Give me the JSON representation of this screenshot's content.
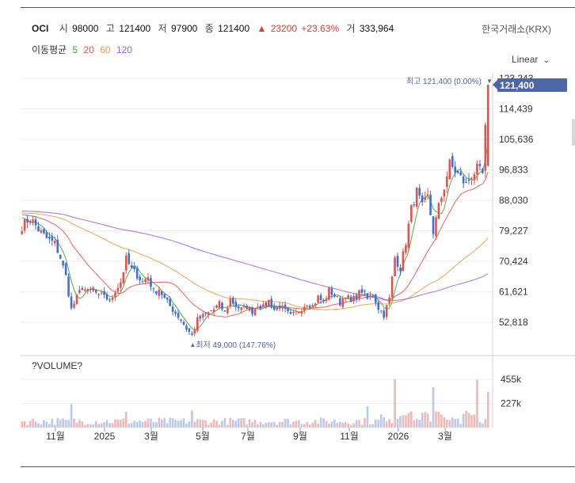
{
  "header": {
    "name": "OCI",
    "open_label": "시",
    "open": "98000",
    "high_label": "고",
    "high": "121400",
    "low_label": "저",
    "low": "97900",
    "close_label": "종",
    "close": "121400",
    "change": "23200",
    "change_pct": "+23.63%",
    "volume_label": "거",
    "volume": "333,964",
    "exchange": "한국거래소(KRX)"
  },
  "ma_legend": {
    "label": "이동평균",
    "items": [
      {
        "text": "5",
        "color": "#3aa63a"
      },
      {
        "text": "20",
        "color": "#e8514a"
      },
      {
        "text": "60",
        "color": "#f09a40"
      },
      {
        "text": "120",
        "color": "#9b5fe0"
      }
    ]
  },
  "scale_toggle": {
    "label": "Linear"
  },
  "colors": {
    "up": "#e8514a",
    "down": "#3d6fd8",
    "price_tag": "#4d66a6",
    "grid": "#eeeeee"
  },
  "chart_data": {
    "type": "candlestick",
    "price_axis_ticks": [
      "123,243",
      "114,439",
      "105,636",
      "96,833",
      "88,030",
      "79,227",
      "70,424",
      "61,621",
      "52,818"
    ],
    "price_axis_values": [
      123243,
      114439,
      105636,
      96833,
      88030,
      79227,
      70424,
      61621,
      52818
    ],
    "current_price_tag": "121,400",
    "max_annotation": "최고 121,400 (0.00%)",
    "min_annotation": "최저 49,000 (147.76%)",
    "x_ticks": [
      "11월",
      "2025",
      "3월",
      "5월",
      "7월",
      "9월",
      "11월",
      "2026",
      "3월"
    ],
    "volume_label": "?VOLUME?",
    "volume_ticks": [
      "455k",
      "227k"
    ],
    "volume_tick_values": [
      455000,
      227000
    ],
    "close_path": [
      [
        0,
        80500
      ],
      [
        3,
        83000
      ],
      [
        6,
        79500
      ],
      [
        9,
        77000
      ],
      [
        12,
        75500
      ],
      [
        14,
        71500
      ],
      [
        16,
        66000
      ],
      [
        18,
        56500
      ],
      [
        20,
        60000
      ],
      [
        22,
        63000
      ],
      [
        24,
        61500
      ],
      [
        26,
        62500
      ],
      [
        28,
        60000
      ],
      [
        30,
        61000
      ],
      [
        32,
        58500
      ],
      [
        34,
        62000
      ],
      [
        36,
        64500
      ],
      [
        38,
        71000
      ],
      [
        40,
        68000
      ],
      [
        42,
        66500
      ],
      [
        44,
        64500
      ],
      [
        46,
        66000
      ],
      [
        48,
        61500
      ],
      [
        50,
        62500
      ],
      [
        52,
        59500
      ],
      [
        54,
        57500
      ],
      [
        56,
        55500
      ],
      [
        58,
        53500
      ],
      [
        60,
        51000
      ],
      [
        62,
        49000
      ],
      [
        64,
        53500
      ],
      [
        66,
        54500
      ],
      [
        68,
        55500
      ],
      [
        70,
        56500
      ],
      [
        72,
        58000
      ],
      [
        74,
        55500
      ],
      [
        76,
        59500
      ],
      [
        78,
        57500
      ],
      [
        80,
        56500
      ],
      [
        82,
        57500
      ],
      [
        84,
        56000
      ],
      [
        86,
        58000
      ],
      [
        88,
        57000
      ],
      [
        90,
        59000
      ],
      [
        92,
        56500
      ],
      [
        94,
        57500
      ],
      [
        96,
        56000
      ],
      [
        98,
        54500
      ],
      [
        100,
        55500
      ],
      [
        102,
        57000
      ],
      [
        104,
        58500
      ],
      [
        106,
        57500
      ],
      [
        108,
        60000
      ],
      [
        110,
        58500
      ],
      [
        112,
        62000
      ],
      [
        114,
        60500
      ],
      [
        116,
        58500
      ],
      [
        118,
        61000
      ],
      [
        120,
        58500
      ],
      [
        122,
        60500
      ],
      [
        124,
        62000
      ],
      [
        126,
        59500
      ],
      [
        128,
        61000
      ],
      [
        130,
        57000
      ],
      [
        132,
        55000
      ],
      [
        134,
        59500
      ],
      [
        136,
        71500
      ],
      [
        138,
        68500
      ],
      [
        140,
        76000
      ],
      [
        142,
        85500
      ],
      [
        144,
        90500
      ],
      [
        146,
        86000
      ],
      [
        148,
        89000
      ],
      [
        150,
        79000
      ],
      [
        152,
        86000
      ],
      [
        154,
        92000
      ],
      [
        156,
        98500
      ],
      [
        158,
        96500
      ],
      [
        160,
        94500
      ],
      [
        162,
        92500
      ],
      [
        164,
        95500
      ],
      [
        166,
        97000
      ],
      [
        168,
        95500
      ],
      [
        170,
        121400
      ]
    ],
    "volume_spikes": [
      [
        18,
        220000
      ],
      [
        38,
        150000
      ],
      [
        62,
        160000
      ],
      [
        126,
        200000
      ],
      [
        136,
        455000
      ],
      [
        150,
        380000
      ],
      [
        166,
        450000
      ],
      [
        170,
        333964
      ]
    ],
    "grid": true
  }
}
